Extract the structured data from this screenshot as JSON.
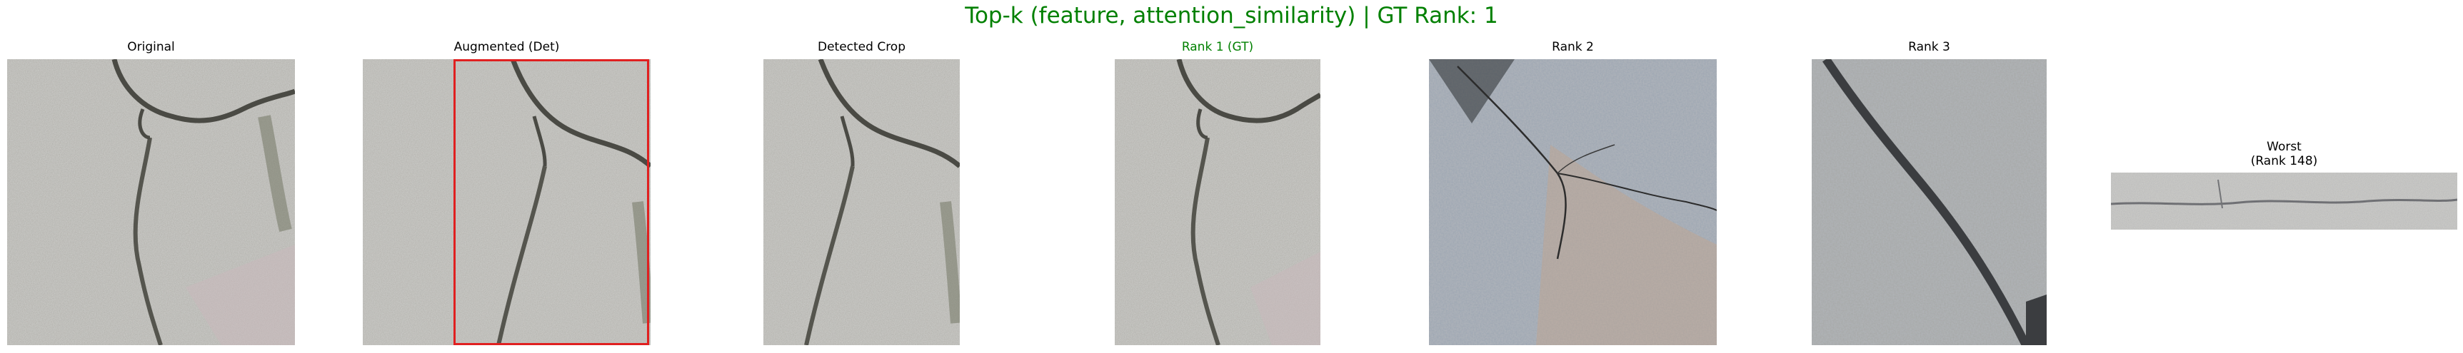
{
  "figure": {
    "title": "Top-k (feature, attention_similarity) | GT Rank: 1"
  },
  "panels": {
    "original": {
      "caption": "Original"
    },
    "augmented": {
      "caption": "Augmented (Det)"
    },
    "detected_crop": {
      "caption": "Detected Crop"
    },
    "rank1": {
      "caption": "Rank 1 (GT)"
    },
    "rank2": {
      "caption": "Rank 2"
    },
    "rank3": {
      "caption": "Rank 3"
    },
    "worst": {
      "caption_line1": "Worst",
      "caption_line2": "(Rank 148)"
    }
  },
  "colors": {
    "title": "#008000",
    "gt_caption": "#008000",
    "detection_box": "#e02020"
  }
}
